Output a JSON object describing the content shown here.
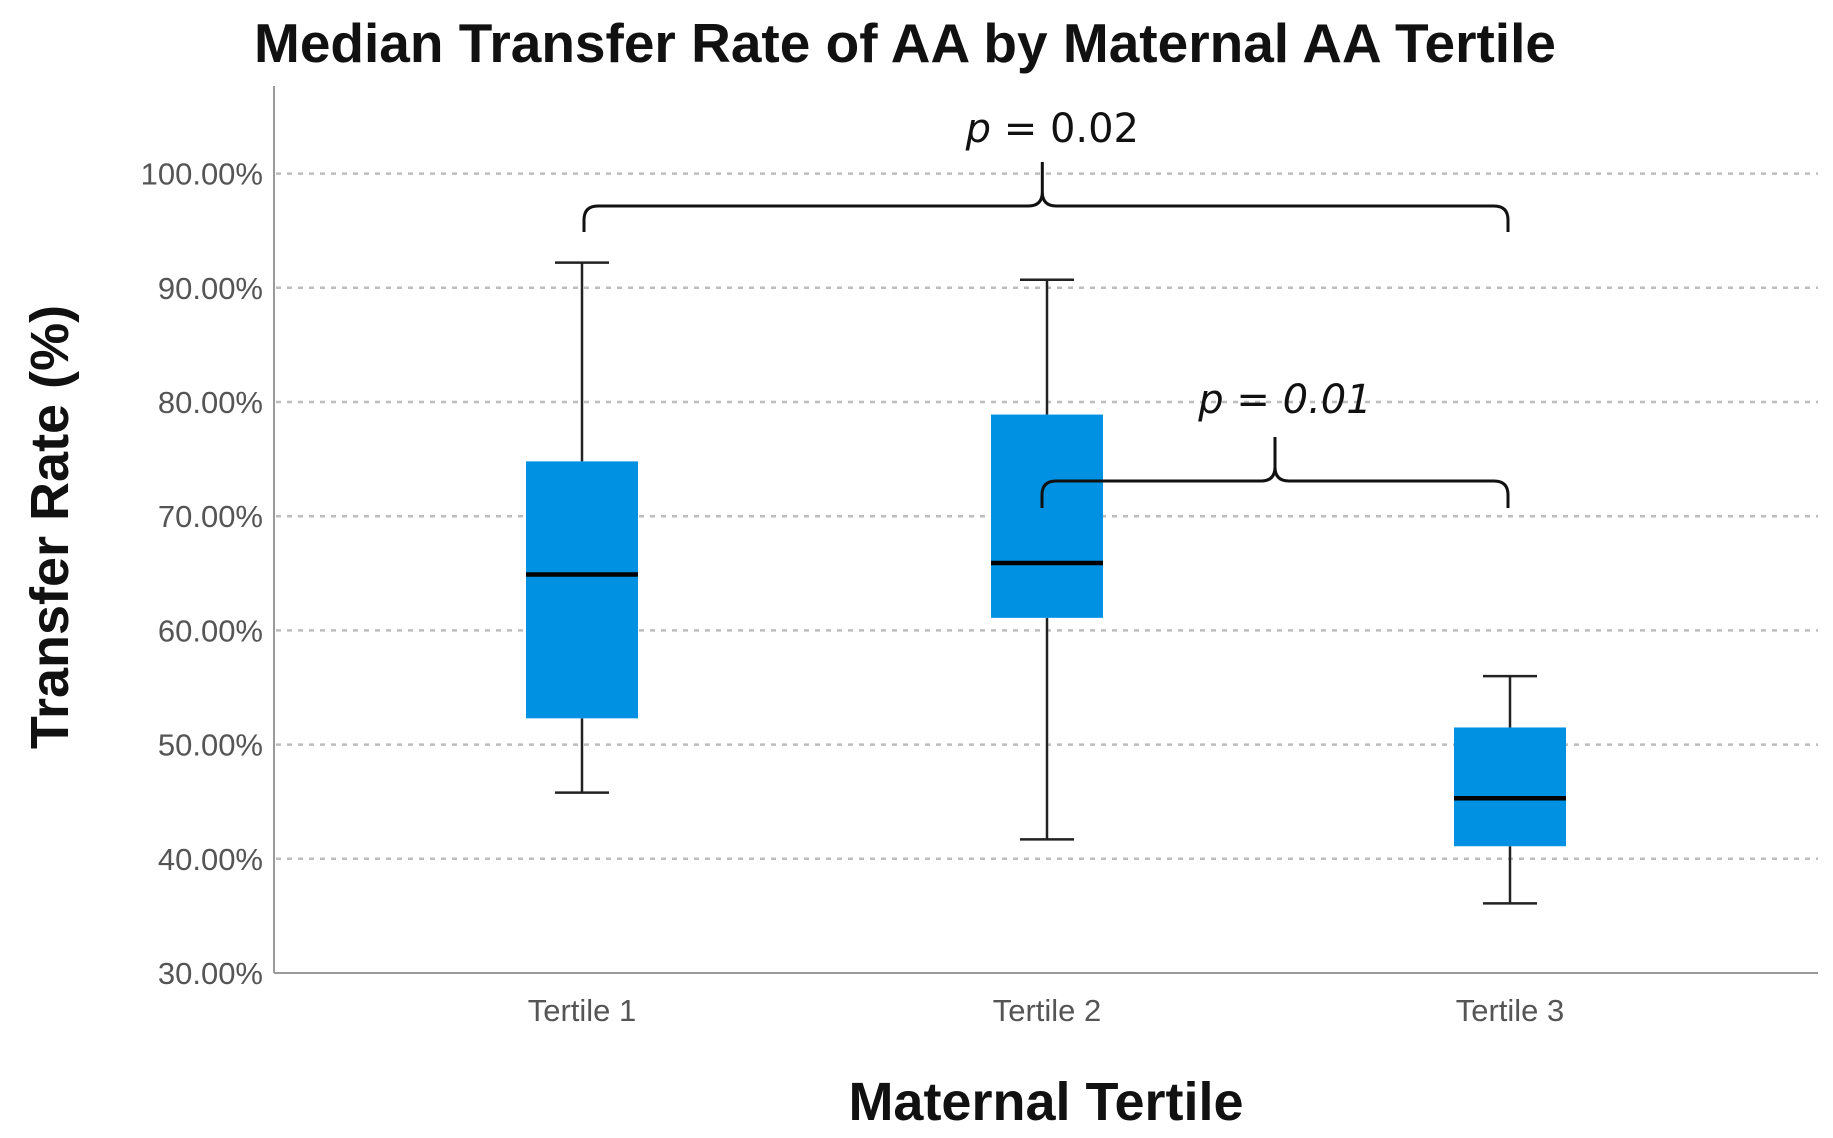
{
  "chart_data": {
    "type": "box",
    "title": "Median Transfer Rate of AA by Maternal AA Tertile",
    "xlabel": "Maternal Tertile",
    "ylabel": "Transfer Rate (%)",
    "ylim": [
      30,
      107
    ],
    "yticks": [
      30,
      40,
      50,
      60,
      70,
      80,
      90,
      100
    ],
    "ytick_labels": [
      "30.00%",
      "40.00%",
      "50.00%",
      "60.00%",
      "70.00%",
      "80.00%",
      "90.00%",
      "100.00%"
    ],
    "grid": "horizontal dotted",
    "box_color": "#0091E3",
    "categories": [
      "Tertile 1",
      "Tertile 2",
      "Tertile 3"
    ],
    "boxes": [
      {
        "category": "Tertile 1",
        "whisker_low": 45.8,
        "q1": 52.3,
        "median": 64.9,
        "q3": 74.8,
        "whisker_high": 92.2
      },
      {
        "category": "Tertile 2",
        "whisker_low": 41.7,
        "q1": 61.1,
        "median": 65.9,
        "q3": 78.9,
        "whisker_high": 90.7
      },
      {
        "category": "Tertile 3",
        "whisker_low": 36.1,
        "q1": 41.1,
        "median": 45.3,
        "q3": 51.5,
        "whisker_high": 56.0
      }
    ],
    "annotations": [
      {
        "from": "Tertile 1",
        "to": "Tertile 3",
        "p_label": "p",
        "p_value": "0.02",
        "level": 97
      },
      {
        "from": "Tertile 2",
        "to": "Tertile 3",
        "p_label": "p",
        "p_value": "0.01",
        "level": 73
      }
    ]
  }
}
